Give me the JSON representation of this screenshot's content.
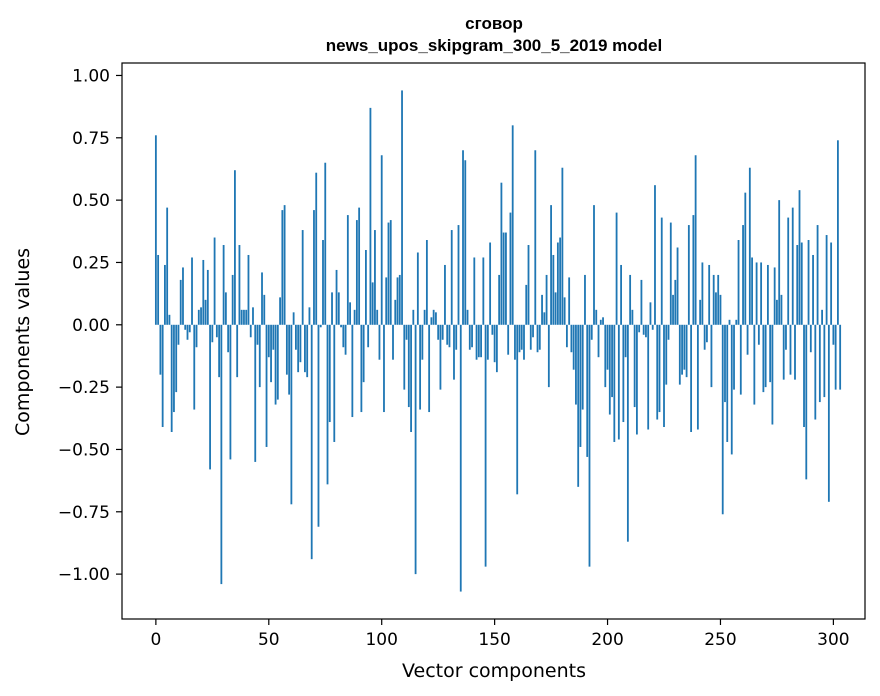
{
  "chart_data": {
    "type": "bar",
    "title": "сговор",
    "subtitle": "news_upos_skipgram_300_5_2019 model",
    "xlabel": "Vector components",
    "ylabel": "Components values",
    "xlim": [
      -15,
      314
    ],
    "ylim": [
      -1.18,
      1.05
    ],
    "xticks": [
      0,
      50,
      100,
      150,
      200,
      250,
      300
    ],
    "xtick_labels": [
      "0",
      "50",
      "100",
      "150",
      "200",
      "250",
      "300"
    ],
    "yticks": [
      1.0,
      0.75,
      0.5,
      0.25,
      0.0,
      -0.25,
      -0.5,
      -0.75,
      -1.0
    ],
    "ytick_labels": [
      "1.00",
      "0.75",
      "0.50",
      "0.25",
      "0.00",
      "−0.25",
      "−0.50",
      "−0.75",
      "−1.00"
    ],
    "bar_color": "#1f77b4",
    "values": [
      0.76,
      0.28,
      -0.2,
      -0.41,
      0.24,
      0.47,
      0.04,
      -0.43,
      -0.35,
      -0.27,
      -0.08,
      0.18,
      0.23,
      -0.02,
      -0.06,
      -0.03,
      0.27,
      -0.34,
      -0.09,
      0.06,
      0.07,
      0.26,
      0.1,
      0.22,
      -0.58,
      -0.07,
      0.35,
      -0.05,
      -0.21,
      -1.04,
      0.32,
      0.13,
      -0.11,
      -0.54,
      0.2,
      0.62,
      -0.21,
      0.32,
      0.06,
      0.06,
      0.06,
      0.28,
      -0.05,
      0.07,
      -0.55,
      -0.08,
      -0.25,
      0.21,
      0.12,
      -0.49,
      -0.13,
      -0.23,
      -0.1,
      -0.32,
      -0.3,
      0.11,
      0.46,
      0.48,
      -0.2,
      -0.28,
      -0.72,
      0.05,
      -0.1,
      -0.19,
      -0.15,
      0.38,
      -0.19,
      -0.21,
      0.07,
      -0.94,
      0.46,
      0.61,
      -0.81,
      -0.01,
      0.34,
      0.65,
      -0.64,
      -0.39,
      0.13,
      -0.47,
      0.22,
      0.13,
      -0.01,
      -0.09,
      -0.12,
      0.44,
      0.09,
      -0.37,
      0.06,
      0.42,
      0.47,
      -0.35,
      -0.23,
      0.3,
      -0.09,
      0.87,
      0.17,
      0.38,
      0.06,
      -0.14,
      0.68,
      -0.35,
      0.19,
      0.41,
      0.42,
      -0.14,
      0.1,
      0.19,
      0.2,
      0.94,
      -0.26,
      -0.06,
      -0.33,
      -0.43,
      0.06,
      -1.0,
      0.29,
      -0.34,
      -0.14,
      0.06,
      0.34,
      -0.35,
      0.03,
      0.06,
      0.05,
      -0.06,
      -0.26,
      -0.06,
      0.24,
      -0.08,
      -0.09,
      0.38,
      -0.22,
      -0.1,
      0.4,
      -1.07,
      0.7,
      0.66,
      0.06,
      -0.1,
      -0.09,
      0.27,
      -0.14,
      -0.13,
      -0.13,
      0.27,
      -0.97,
      -0.14,
      0.33,
      -0.04,
      -0.15,
      -0.19,
      0.2,
      0.57,
      0.37,
      0.37,
      -0.12,
      0.45,
      0.8,
      -0.14,
      -0.68,
      -0.11,
      -0.1,
      -0.14,
      0.16,
      0.32,
      -0.1,
      -0.05,
      0.7,
      -0.11,
      -0.1,
      0.12,
      0.05,
      0.2,
      -0.25,
      0.48,
      0.28,
      0.13,
      0.33,
      0.35,
      0.63,
      0.11,
      -0.09,
      0.19,
      -0.11,
      -0.18,
      -0.32,
      -0.65,
      -0.49,
      -0.34,
      0.2,
      -0.53,
      -0.97,
      -0.06,
      0.48,
      0.06,
      -0.13,
      0.02,
      0.03,
      -0.25,
      -0.18,
      -0.36,
      -0.29,
      -0.47,
      0.45,
      -0.46,
      0.24,
      -0.39,
      -0.13,
      -0.87,
      0.2,
      0.06,
      -0.33,
      -0.44,
      -0.03,
      0.18,
      -0.04,
      -0.05,
      -0.42,
      0.09,
      -0.02,
      0.56,
      -0.38,
      -0.35,
      0.43,
      -0.41,
      -0.24,
      -0.06,
      0.41,
      0.12,
      0.18,
      0.31,
      -0.24,
      -0.2,
      -0.18,
      -0.21,
      0.4,
      -0.43,
      0.44,
      0.68,
      -0.42,
      0.1,
      0.25,
      -0.1,
      -0.07,
      0.24,
      -0.25,
      0.2,
      0.13,
      0.2,
      0.12,
      -0.76,
      -0.31,
      -0.47,
      0.02,
      -0.52,
      -0.26,
      0.02,
      0.34,
      -0.28,
      0.4,
      0.53,
      -0.12,
      0.63,
      0.27,
      -0.32,
      0.25,
      -0.08,
      0.25,
      -0.27,
      -0.25,
      0.24,
      -0.23,
      -0.4,
      0.23,
      0.1,
      0.5,
      0.12,
      -0.22,
      -0.1,
      0.43,
      -0.2,
      0.47,
      -0.22,
      0.32,
      0.54,
      0.33,
      -0.41,
      -0.62,
      0.34,
      -0.11,
      0.28,
      -0.38,
      0.4,
      -0.31,
      0.06,
      -0.29,
      0.36,
      -0.71,
      0.33,
      -0.08,
      -0.26,
      0.74,
      -0.26
    ]
  }
}
